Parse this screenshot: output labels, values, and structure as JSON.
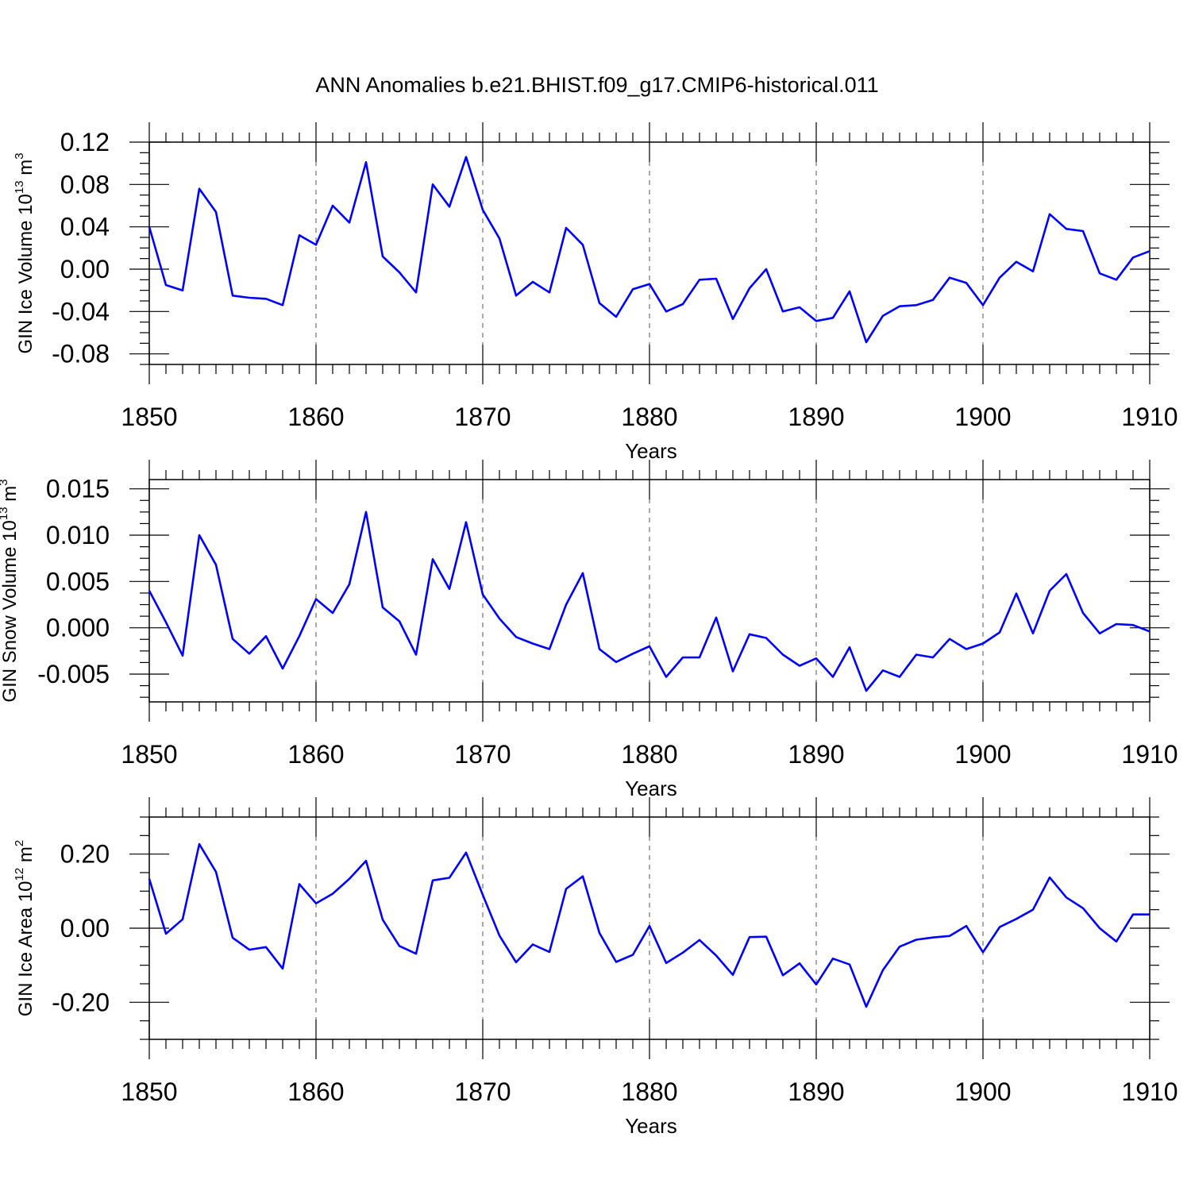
{
  "figure": {
    "title": "ANN Anomalies b.e21.BHIST.f09_g17.CMIP6-historical.011"
  },
  "colors": {
    "series": "#0000ff",
    "axis": "#000000",
    "grid": "#555555"
  },
  "chart_data": [
    {
      "type": "line",
      "ylabel_main": "GIN Ice Volume 10",
      "ylabel_exp": "13",
      "ylabel_unit": " m",
      "ylabel_unit_exp": "3",
      "xlabel": "Years",
      "xlim": [
        1850,
        1910
      ],
      "ylim": [
        -0.09,
        0.12
      ],
      "xticks": [
        1850,
        1860,
        1870,
        1880,
        1890,
        1900,
        1910
      ],
      "yticks": [
        -0.08,
        -0.04,
        0.0,
        0.04,
        0.08,
        0.12
      ],
      "ytick_labels": [
        "-0.08",
        "-0.04",
        "0.00",
        "0.04",
        "0.08",
        "0.12"
      ],
      "vgrid": [
        1860,
        1870,
        1880,
        1890,
        1900
      ],
      "x_start": 1850,
      "values": [
        0.04,
        -0.015,
        -0.02,
        0.076,
        0.054,
        -0.025,
        -0.027,
        -0.028,
        -0.034,
        0.032,
        0.023,
        0.06,
        0.044,
        0.101,
        0.012,
        -0.003,
        -0.022,
        0.08,
        0.059,
        0.106,
        0.056,
        0.029,
        -0.025,
        -0.012,
        -0.022,
        0.039,
        0.023,
        -0.032,
        -0.045,
        -0.019,
        -0.014,
        -0.04,
        -0.033,
        -0.01,
        -0.009,
        -0.047,
        -0.018,
        0.0,
        -0.04,
        -0.036,
        -0.049,
        -0.046,
        -0.021,
        -0.069,
        -0.044,
        -0.035,
        -0.034,
        -0.029,
        -0.008,
        -0.013,
        -0.034,
        -0.008,
        0.007,
        -0.002,
        0.052,
        0.038,
        0.036,
        -0.004,
        -0.01,
        0.011,
        0.017
      ]
    },
    {
      "type": "line",
      "ylabel_main": "GIN Snow Volume 10",
      "ylabel_exp": "13",
      "ylabel_unit": " m",
      "ylabel_unit_exp": "3",
      "xlabel": "Years",
      "xlim": [
        1850,
        1910
      ],
      "ylim": [
        -0.008,
        0.016
      ],
      "xticks": [
        1850,
        1860,
        1870,
        1880,
        1890,
        1900,
        1910
      ],
      "yticks": [
        -0.005,
        0.0,
        0.005,
        0.01,
        0.015
      ],
      "ytick_labels": [
        "-0.005",
        "0.000",
        "0.005",
        "0.010",
        "0.015"
      ],
      "vgrid": [
        1860,
        1870,
        1880,
        1890,
        1900
      ],
      "x_start": 1850,
      "values": [
        0.004,
        0.0006,
        -0.003,
        0.01,
        0.0068,
        -0.0012,
        -0.0028,
        -0.0009,
        -0.0044,
        -0.0009,
        0.0031,
        0.0016,
        0.0047,
        0.0125,
        0.0022,
        0.0007,
        -0.0029,
        0.0074,
        0.0042,
        0.0114,
        0.0036,
        0.001,
        -0.001,
        -0.0017,
        -0.0023,
        0.0025,
        0.0059,
        -0.0023,
        -0.0037,
        -0.0028,
        -0.002,
        -0.0053,
        -0.0032,
        -0.0032,
        0.0011,
        -0.0047,
        -0.0007,
        -0.0011,
        -0.0029,
        -0.0041,
        -0.0033,
        -0.0053,
        -0.0021,
        -0.0068,
        -0.0046,
        -0.0053,
        -0.0029,
        -0.0032,
        -0.0012,
        -0.0023,
        -0.0017,
        -0.0005,
        0.0037,
        -0.0006,
        0.004,
        0.0058,
        0.0016,
        -0.0006,
        0.0004,
        0.0003,
        -0.0004
      ]
    },
    {
      "type": "line",
      "ylabel_main": "GIN Ice Area 10",
      "ylabel_exp": "12",
      "ylabel_unit": " m",
      "ylabel_unit_exp": "2",
      "xlabel": "Years",
      "xlim": [
        1850,
        1910
      ],
      "ylim": [
        -0.3,
        0.3
      ],
      "xticks": [
        1850,
        1860,
        1870,
        1880,
        1890,
        1900,
        1910
      ],
      "yticks": [
        -0.2,
        0.0,
        0.2
      ],
      "ytick_labels": [
        "-0.20",
        "0.00",
        "0.20"
      ],
      "vgrid": [
        1860,
        1870,
        1880,
        1890,
        1900
      ],
      "x_start": 1850,
      "values": [
        0.133,
        -0.015,
        0.024,
        0.227,
        0.152,
        -0.026,
        -0.058,
        -0.051,
        -0.109,
        0.119,
        0.067,
        0.093,
        0.133,
        0.182,
        0.023,
        -0.048,
        -0.069,
        0.129,
        0.136,
        0.204,
        0.09,
        -0.02,
        -0.092,
        -0.044,
        -0.064,
        0.106,
        0.14,
        -0.013,
        -0.091,
        -0.072,
        0.006,
        -0.094,
        -0.066,
        -0.032,
        -0.074,
        -0.126,
        -0.024,
        -0.023,
        -0.127,
        -0.095,
        -0.152,
        -0.082,
        -0.098,
        -0.212,
        -0.113,
        -0.05,
        -0.031,
        -0.025,
        -0.021,
        0.006,
        -0.065,
        0.003,
        0.025,
        0.05,
        0.137,
        0.083,
        0.054,
        0.0,
        -0.036,
        0.037,
        0.037
      ]
    }
  ]
}
